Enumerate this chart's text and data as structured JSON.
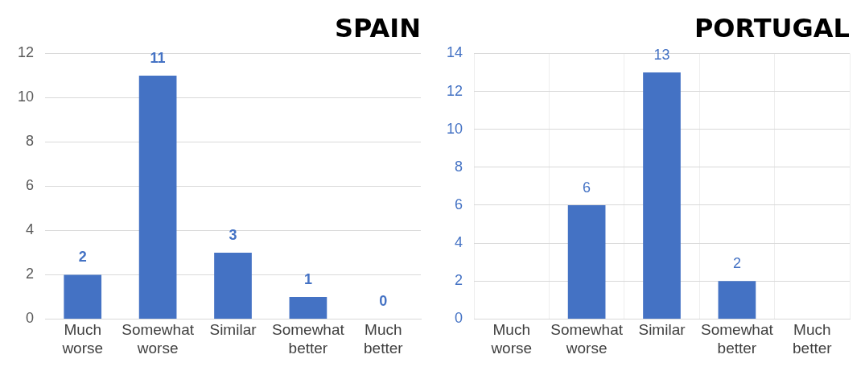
{
  "chart_data": [
    {
      "type": "bar",
      "title": "SPAIN",
      "categories": [
        "Much worse",
        "Somewhat worse",
        "Similar",
        "Somewhat better",
        "Much better"
      ],
      "values": [
        2,
        11,
        3,
        1,
        0
      ],
      "color": "#4472c4",
      "ylim": [
        0,
        12
      ],
      "yticks": [
        0,
        2,
        4,
        6,
        8,
        10,
        12
      ],
      "grid": "y",
      "data_labels": true
    },
    {
      "type": "bar",
      "title": "PORTUGAL",
      "categories": [
        "Much worse",
        "Somewhat worse",
        "Similar",
        "Somewhat better",
        "Much better"
      ],
      "values": [
        0,
        6,
        13,
        2,
        0
      ],
      "value_labels": [
        null,
        "6",
        "13",
        "2",
        null
      ],
      "color": "#4472c4",
      "ylim": [
        0,
        14
      ],
      "yticks": [
        0,
        2,
        4,
        6,
        8,
        10,
        12,
        14
      ],
      "grid": true
    }
  ]
}
